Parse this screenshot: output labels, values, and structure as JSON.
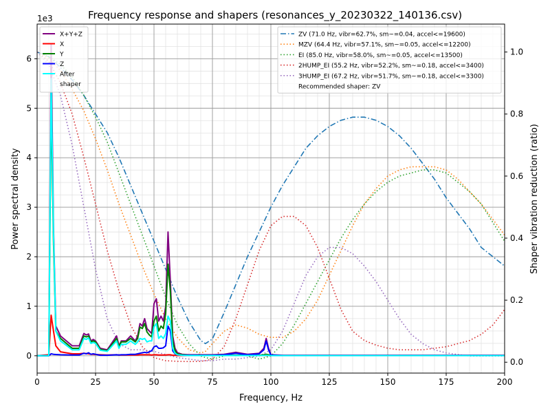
{
  "chart_data": {
    "type": "line",
    "title": "Frequency response and shapers (resonances_y_20230322_140136.csv)",
    "xlabel": "Frequency, Hz",
    "ylabel": "Power spectral density",
    "y2label": "Shaper vibration reduction (ratio)",
    "y_offset_label": "1e3",
    "xlim": [
      0,
      200
    ],
    "ylim": [
      -350,
      6700
    ],
    "y2lim": [
      -0.035,
      1.09
    ],
    "xticks": [
      0,
      25,
      50,
      75,
      100,
      125,
      150,
      175,
      200
    ],
    "yticks": [
      0,
      1000,
      2000,
      3000,
      4000,
      5000,
      6000
    ],
    "ytick_labels": [
      "0",
      "1",
      "2",
      "3",
      "4",
      "5",
      "6"
    ],
    "y2ticks": [
      0.0,
      0.2,
      0.4,
      0.6,
      0.8,
      1.0
    ],
    "y2tick_labels": [
      "0.0",
      "0.2",
      "0.4",
      "0.6",
      "0.8",
      "1.0"
    ],
    "grid": true,
    "x": [
      0,
      5,
      6,
      7,
      8,
      10,
      15,
      18,
      20,
      21,
      22,
      23,
      24,
      25,
      27,
      30,
      34,
      35,
      36,
      38,
      40,
      42,
      43,
      44,
      45,
      46,
      47,
      48,
      49,
      50,
      51,
      52,
      53,
      54,
      55,
      56,
      57,
      58,
      59,
      60,
      62,
      65,
      70,
      75,
      80,
      85,
      90,
      95,
      97,
      98,
      99,
      100,
      105,
      110,
      120,
      130,
      140,
      150,
      160,
      170,
      180,
      190,
      200
    ],
    "psd_series": [
      {
        "name": "X+Y+Z",
        "color": "#800080",
        "values": [
          0,
          0,
          6300,
          2600,
          600,
          400,
          200,
          200,
          450,
          420,
          440,
          300,
          330,
          300,
          150,
          120,
          400,
          200,
          300,
          300,
          400,
          300,
          400,
          650,
          600,
          750,
          550,
          500,
          450,
          1050,
          1150,
          700,
          800,
          700,
          1000,
          2500,
          1500,
          400,
          150,
          60,
          30,
          20,
          20,
          20,
          30,
          70,
          30,
          50,
          150,
          350,
          150,
          20,
          10,
          10,
          10,
          10,
          10,
          10,
          10,
          10,
          10,
          10,
          10
        ]
      },
      {
        "name": "X",
        "color": "#ff0000",
        "values": [
          0,
          20,
          820,
          500,
          200,
          80,
          40,
          40,
          50,
          45,
          40,
          30,
          30,
          25,
          20,
          15,
          20,
          15,
          15,
          15,
          15,
          15,
          15,
          20,
          20,
          20,
          20,
          20,
          15,
          20,
          20,
          15,
          15,
          15,
          15,
          20,
          20,
          10,
          10,
          5,
          5,
          5,
          5,
          5,
          5,
          5,
          5,
          5,
          5,
          5,
          5,
          5,
          5,
          5,
          5,
          5,
          5,
          5,
          5,
          5,
          5,
          5,
          5
        ]
      },
      {
        "name": "Y",
        "color": "#008000",
        "values": [
          0,
          0,
          5200,
          2300,
          500,
          350,
          150,
          150,
          400,
          380,
          400,
          280,
          300,
          280,
          130,
          100,
          350,
          180,
          280,
          280,
          350,
          280,
          350,
          580,
          550,
          650,
          480,
          420,
          380,
          700,
          800,
          500,
          600,
          550,
          850,
          1850,
          1300,
          300,
          100,
          40,
          20,
          10,
          10,
          10,
          10,
          10,
          10,
          10,
          20,
          30,
          20,
          5,
          5,
          5,
          5,
          5,
          5,
          5,
          5,
          5,
          5,
          5,
          5
        ]
      },
      {
        "name": "Z",
        "color": "#0000ff",
        "values": [
          0,
          0,
          40,
          30,
          25,
          20,
          15,
          15,
          50,
          40,
          60,
          30,
          40,
          30,
          10,
          10,
          20,
          15,
          20,
          20,
          30,
          30,
          40,
          50,
          60,
          70,
          60,
          80,
          100,
          180,
          200,
          150,
          150,
          160,
          200,
          600,
          500,
          100,
          40,
          20,
          10,
          10,
          10,
          10,
          20,
          50,
          20,
          40,
          120,
          300,
          120,
          15,
          5,
          5,
          5,
          5,
          5,
          5,
          5,
          5,
          5,
          5,
          5
        ]
      },
      {
        "name": "After\nshaper",
        "color": "#00ffff",
        "values": [
          0,
          0,
          5600,
          2500,
          500,
          300,
          120,
          120,
          350,
          330,
          360,
          250,
          270,
          250,
          110,
          90,
          300,
          150,
          230,
          230,
          300,
          230,
          280,
          350,
          330,
          350,
          280,
          300,
          300,
          580,
          650,
          350,
          400,
          350,
          450,
          800,
          700,
          150,
          50,
          20,
          10,
          5,
          5,
          5,
          5,
          5,
          5,
          5,
          5,
          10,
          5,
          3,
          3,
          3,
          3,
          3,
          3,
          3,
          3,
          3,
          3,
          3,
          3
        ]
      }
    ],
    "shaper_x": [
      0,
      5,
      10,
      15,
      20,
      25,
      30,
      35,
      40,
      45,
      50,
      55,
      60,
      65,
      70,
      72,
      75,
      80,
      85,
      90,
      95,
      100,
      105,
      110,
      115,
      120,
      125,
      130,
      135,
      140,
      145,
      150,
      155,
      160,
      165,
      170,
      175,
      180,
      185,
      190,
      195,
      200
    ],
    "shaper_series": [
      {
        "name": "ZV (71.0 Hz, vibr=62.7%, sm~=0.04, accel<=19600)",
        "color": "#1f77b4",
        "dash": "dashdot",
        "values": [
          1.0,
          0.985,
          0.95,
          0.91,
          0.86,
          0.8,
          0.74,
          0.66,
          0.57,
          0.48,
          0.39,
          0.3,
          0.21,
          0.13,
          0.07,
          0.06,
          0.075,
          0.16,
          0.25,
          0.34,
          0.42,
          0.5,
          0.57,
          0.63,
          0.69,
          0.73,
          0.76,
          0.78,
          0.79,
          0.79,
          0.78,
          0.76,
          0.73,
          0.69,
          0.64,
          0.59,
          0.53,
          0.48,
          0.43,
          0.37,
          0.34,
          0.31
        ]
      },
      {
        "name": "MZV (64.4 Hz, vibr=57.1%, sm~=0.05, accel<=12200)",
        "color": "#ff7f0e",
        "dash": "dotted",
        "values": [
          1.0,
          0.98,
          0.94,
          0.88,
          0.81,
          0.72,
          0.62,
          0.51,
          0.41,
          0.31,
          0.22,
          0.14,
          0.08,
          0.04,
          0.03,
          0.035,
          0.06,
          0.1,
          0.12,
          0.11,
          0.09,
          0.08,
          0.08,
          0.1,
          0.14,
          0.2,
          0.28,
          0.36,
          0.44,
          0.51,
          0.56,
          0.6,
          0.62,
          0.63,
          0.63,
          0.63,
          0.62,
          0.59,
          0.55,
          0.51,
          0.46,
          0.41
        ]
      },
      {
        "name": "EI (85.0 Hz, vibr=58.0%, sm~=0.05, accel<=13500)",
        "color": "#2ca02c",
        "dash": "dotted",
        "values": [
          1.0,
          0.985,
          0.96,
          0.92,
          0.86,
          0.79,
          0.71,
          0.61,
          0.51,
          0.41,
          0.31,
          0.21,
          0.12,
          0.06,
          0.02,
          0.015,
          0.01,
          0.02,
          0.03,
          0.02,
          0.01,
          0.02,
          0.06,
          0.12,
          0.19,
          0.26,
          0.33,
          0.4,
          0.46,
          0.51,
          0.55,
          0.58,
          0.6,
          0.61,
          0.62,
          0.62,
          0.61,
          0.58,
          0.55,
          0.51,
          0.45,
          0.39
        ]
      },
      {
        "name": "2HUMP_EI (55.2 Hz, vibr=52.2%, sm~=0.18, accel<=3400)",
        "color": "#d62728",
        "dash": "dotted",
        "values": [
          1.0,
          0.97,
          0.9,
          0.8,
          0.66,
          0.51,
          0.36,
          0.23,
          0.12,
          0.05,
          0.015,
          0.005,
          0.003,
          0.002,
          0.003,
          0.005,
          0.01,
          0.05,
          0.14,
          0.25,
          0.36,
          0.44,
          0.47,
          0.47,
          0.44,
          0.37,
          0.27,
          0.17,
          0.1,
          0.07,
          0.055,
          0.045,
          0.04,
          0.04,
          0.04,
          0.045,
          0.05,
          0.06,
          0.07,
          0.09,
          0.12,
          0.17
        ]
      },
      {
        "name": "3HUMP_EI (67.2 Hz, vibr=51.7%, sm~=0.18, accel<=3300)",
        "color": "#9467bd",
        "dash": "dotted",
        "values": [
          1.0,
          0.96,
          0.86,
          0.7,
          0.5,
          0.3,
          0.14,
          0.06,
          0.04,
          0.04,
          0.035,
          0.025,
          0.015,
          0.01,
          0.005,
          0.005,
          0.005,
          0.01,
          0.01,
          0.015,
          0.02,
          0.04,
          0.1,
          0.19,
          0.28,
          0.34,
          0.37,
          0.37,
          0.35,
          0.31,
          0.26,
          0.2,
          0.14,
          0.09,
          0.06,
          0.04,
          0.03,
          0.025,
          0.02,
          0.02,
          0.02,
          0.02
        ]
      }
    ],
    "recommended_label": "Recommended shaper: ZV",
    "legend_psd_placement": "top-left",
    "legend_shaper_placement": "top-right"
  }
}
